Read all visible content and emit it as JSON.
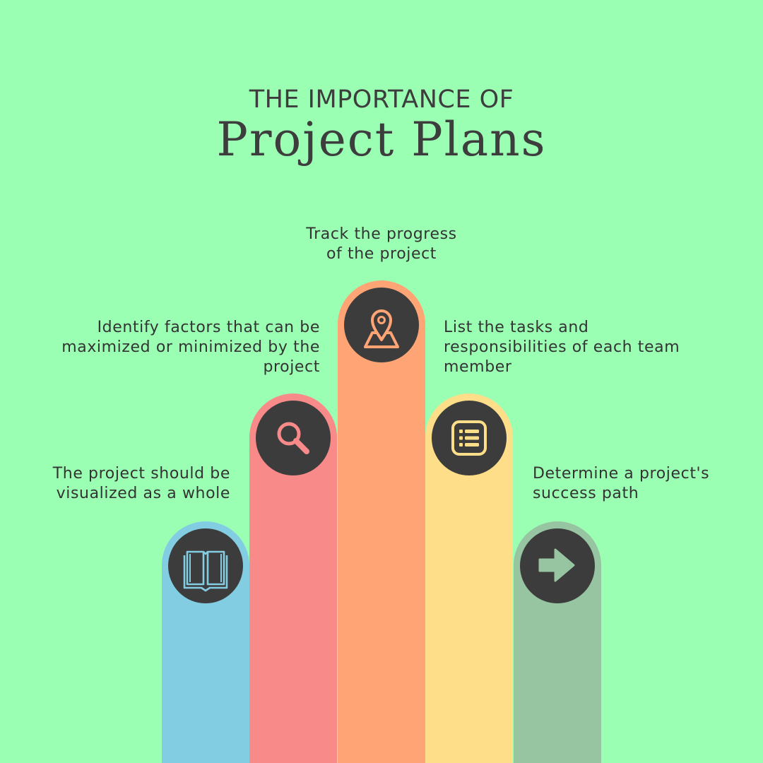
{
  "header": {
    "subtitle": "THE IMPORTANCE OF",
    "title": "Project Plans"
  },
  "colors": {
    "background": "#9BFFB3",
    "pillar_1": "#82CDE2",
    "pillar_2": "#F98A8A",
    "pillar_3": "#FFA474",
    "pillar_4": "#FFDE89",
    "pillar_5": "#97C4A1",
    "icon_bg": "#3C3C3C"
  },
  "items": [
    {
      "icon": "book-icon",
      "lines": [
        "The project should be",
        "visualized as a whole"
      ]
    },
    {
      "icon": "magnifier-icon",
      "lines": [
        "Identify factors that can be",
        "maximized or minimized by the",
        "project"
      ]
    },
    {
      "icon": "map-pin-icon",
      "lines": [
        "Track the progress",
        "of the project"
      ]
    },
    {
      "icon": "list-icon",
      "lines": [
        "List the tasks and",
        "responsibilities of each team",
        "member"
      ]
    },
    {
      "icon": "arrow-right-icon",
      "lines": [
        "Determine a project's",
        "success path"
      ]
    }
  ]
}
